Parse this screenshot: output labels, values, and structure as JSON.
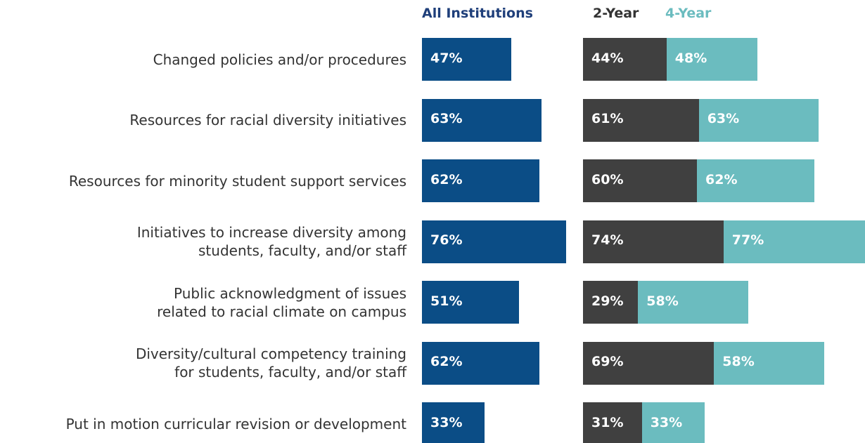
{
  "chart_data": {
    "type": "bar",
    "categories": [
      "Changed policies and/or procedures",
      "Resources for racial diversity initiatives",
      "Resources for minority student support services",
      "Initiatives to increase diversity among\nstudents, faculty, and/or staff",
      "Public acknowledgment of issues\nrelated to racial climate on campus",
      "Diversity/cultural competency training\nfor students, faculty, and/or staff",
      "Put in motion curricular revision or development"
    ],
    "series": [
      {
        "name": "All Institutions",
        "color": "#0b4d86",
        "values": [
          47,
          63,
          62,
          76,
          51,
          62,
          33
        ],
        "value_labels": [
          "47%",
          "63%",
          "62%",
          "76%",
          "51%",
          "62%",
          "33%"
        ]
      },
      {
        "name": "2-Year",
        "color": "#404040",
        "values": [
          44,
          61,
          60,
          74,
          29,
          69,
          31
        ],
        "value_labels": [
          "44%",
          "61%",
          "60%",
          "74%",
          "29%",
          "69%",
          "31%"
        ]
      },
      {
        "name": "4-Year",
        "color": "#6bbcbf",
        "values": [
          48,
          63,
          62,
          77,
          58,
          58,
          33
        ],
        "value_labels": [
          "48%",
          "63%",
          "62%",
          "77%",
          "58%",
          "58%",
          "33%"
        ]
      }
    ]
  }
}
